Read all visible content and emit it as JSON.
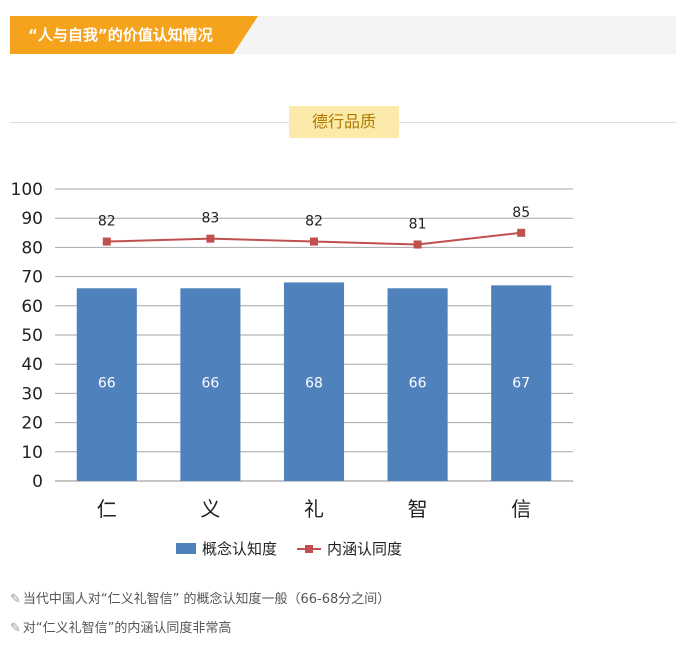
{
  "header": {
    "title": "“人与自我”的价值认知情况"
  },
  "section": {
    "label": "德行品质"
  },
  "chart_data": {
    "type": "bar",
    "categories": [
      "仁",
      "义",
      "礼",
      "智",
      "信"
    ],
    "yticks": [
      "0",
      "10",
      "20",
      "30",
      "40",
      "50",
      "60",
      "70",
      "80",
      "90",
      "100"
    ],
    "ylim": [
      0,
      100
    ],
    "grid": true,
    "legend_position": "bottom",
    "series": [
      {
        "name": "概念认知度",
        "type": "bar",
        "color": "#4f81bd",
        "values": [
          66,
          66,
          68,
          66,
          67
        ],
        "labels": [
          "66",
          "66",
          "68",
          "66",
          "67"
        ]
      },
      {
        "name": "内涵认同度",
        "type": "line",
        "color": "#c0504d",
        "values": [
          82,
          83,
          82,
          81,
          85
        ],
        "labels": [
          "82",
          "83",
          "82",
          "81",
          "85"
        ]
      }
    ]
  },
  "notes": [
    {
      "icon": "pencil-icon",
      "text": "当代中国人对“仁义礼智信” 的概念认知度一般（66-68分之间）"
    },
    {
      "icon": "pencil-icon",
      "text": "对“仁义礼智信”的内涵认同度非常高"
    }
  ]
}
